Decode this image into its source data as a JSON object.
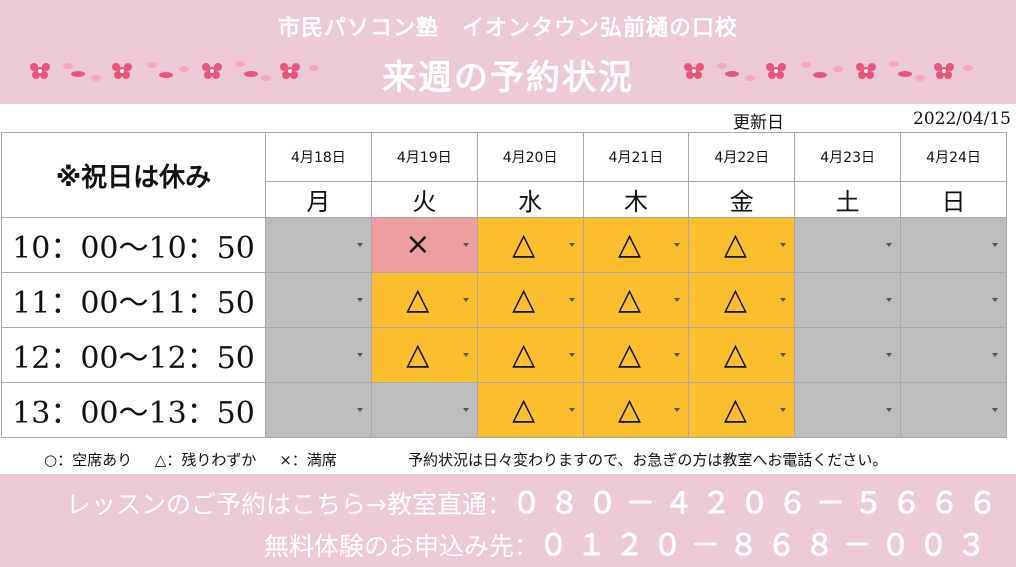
{
  "header": {
    "school": "市民パソコン塾　イオンタウン弘前樋の口校",
    "title": "来週の予約状況",
    "bg_color": "#ebc9d6",
    "decoration": "sakura-petals-icon"
  },
  "updated": {
    "label": "更新日",
    "date": "2022/04/15"
  },
  "table": {
    "holiday_note": "※祝日は休み",
    "days": [
      {
        "date": "4月18日",
        "dow": "月"
      },
      {
        "date": "4月19日",
        "dow": "火"
      },
      {
        "date": "4月20日",
        "dow": "水"
      },
      {
        "date": "4月21日",
        "dow": "木"
      },
      {
        "date": "4月22日",
        "dow": "金"
      },
      {
        "date": "4月23日",
        "dow": "土"
      },
      {
        "date": "4月24日",
        "dow": "日"
      }
    ],
    "rows": [
      {
        "time": "10：00～10：50",
        "cells": [
          {
            "status": "empty",
            "mark": ""
          },
          {
            "status": "full",
            "mark": "×"
          },
          {
            "status": "few",
            "mark": "△"
          },
          {
            "status": "few",
            "mark": "△"
          },
          {
            "status": "few",
            "mark": "△"
          },
          {
            "status": "empty",
            "mark": ""
          },
          {
            "status": "empty",
            "mark": ""
          }
        ]
      },
      {
        "time": "11：00～11：50",
        "cells": [
          {
            "status": "empty",
            "mark": ""
          },
          {
            "status": "few",
            "mark": "△"
          },
          {
            "status": "few",
            "mark": "△"
          },
          {
            "status": "few",
            "mark": "△"
          },
          {
            "status": "few",
            "mark": "△"
          },
          {
            "status": "empty",
            "mark": ""
          },
          {
            "status": "empty",
            "mark": ""
          }
        ]
      },
      {
        "time": "12：00～12：50",
        "cells": [
          {
            "status": "empty",
            "mark": ""
          },
          {
            "status": "few",
            "mark": "△"
          },
          {
            "status": "few",
            "mark": "△"
          },
          {
            "status": "few",
            "mark": "△"
          },
          {
            "status": "few",
            "mark": "△"
          },
          {
            "status": "empty",
            "mark": ""
          },
          {
            "status": "empty",
            "mark": ""
          }
        ]
      },
      {
        "time": "13：00～13：50",
        "cells": [
          {
            "status": "empty",
            "mark": ""
          },
          {
            "status": "empty",
            "mark": ""
          },
          {
            "status": "few",
            "mark": "△"
          },
          {
            "status": "few",
            "mark": "△"
          },
          {
            "status": "few",
            "mark": "△"
          },
          {
            "status": "empty",
            "mark": ""
          },
          {
            "status": "empty",
            "mark": ""
          }
        ]
      }
    ],
    "colors": {
      "empty": "#bdbdbd",
      "few": "#fbbe2c",
      "full": "#ee9da0"
    }
  },
  "legend": {
    "available": "○：空席あり",
    "few": "△：残りわずか",
    "full": "×：満席"
  },
  "notice": "予約状況は日々変わりますので、お急ぎの方は教室へお電話ください。",
  "footer": {
    "lesson_label": "レッスンのご予約はこちら→教室直通：",
    "lesson_phone": "０８０－４２０６－５６６６",
    "trial_label": "無料体験のお申込み先：",
    "trial_phone": "０１２０－８６８－００３"
  }
}
